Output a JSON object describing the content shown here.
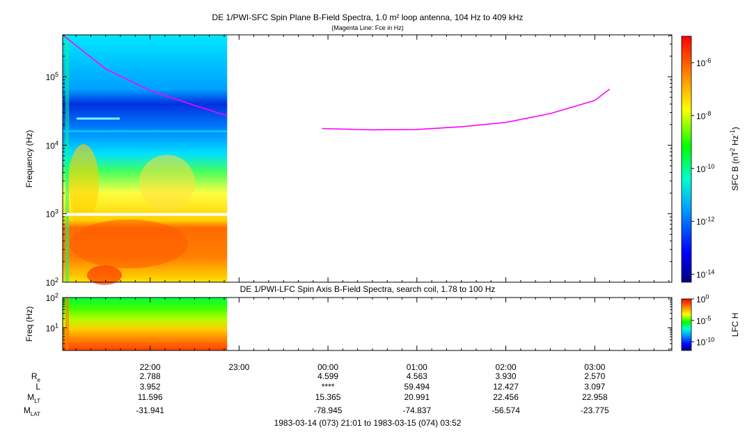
{
  "chart_data": [
    {
      "type": "heatmap",
      "title": "DE 1/PWI-SFC  Spin Plane B-Field Spectra, 1.0 m² loop antenna, 104 Hz to 409 kHz",
      "subtitle": "(Magenta Line: Fce in Hz)",
      "ylabel": "Frequency (Hz)",
      "yscale": "log",
      "ylim": [
        100,
        409000
      ],
      "y_ticks": [
        {
          "value": 100,
          "base": "10",
          "exp": "2"
        },
        {
          "value": 1000,
          "base": "10",
          "exp": "3"
        },
        {
          "value": 10000,
          "base": "10",
          "exp": "4"
        },
        {
          "value": 100000,
          "base": "10",
          "exp": "5"
        }
      ],
      "data_coverage_utc": [
        "21:01",
        "22:52"
      ],
      "fce_line_color": "#ff00ff",
      "fce_line": [
        {
          "t": "21:01",
          "f": 480000
        },
        {
          "t": "21:30",
          "f": 130000
        },
        {
          "t": "22:00",
          "f": 63000
        },
        {
          "t": "22:30",
          "f": 38000
        },
        {
          "t": "22:52",
          "f": 27000
        },
        {
          "t": "23:56",
          "f": 17500
        },
        {
          "t": "00:30",
          "f": 16800
        },
        {
          "t": "01:00",
          "f": 17000
        },
        {
          "t": "01:30",
          "f": 18600
        },
        {
          "t": "02:00",
          "f": 21500
        },
        {
          "t": "02:30",
          "f": 29000
        },
        {
          "t": "03:00",
          "f": 45000
        },
        {
          "t": "03:10",
          "f": 66000
        }
      ],
      "colorbar": {
        "label_base": "SFC B (nT",
        "label_sup1": "2",
        "label_mid": " Hz",
        "label_sup2": "-1",
        "label_end": ")",
        "scale": "log",
        "range": [
          5e-15,
          1e-05
        ],
        "ticks": [
          {
            "value": 1e-06,
            "base": "10",
            "exp": "-6"
          },
          {
            "value": 1e-08,
            "base": "10",
            "exp": "-8"
          },
          {
            "value": 1e-10,
            "base": "10",
            "exp": "-10"
          },
          {
            "value": 1e-12,
            "base": "10",
            "exp": "-12"
          },
          {
            "value": 1e-14,
            "base": "10",
            "exp": "-14"
          }
        ]
      }
    },
    {
      "type": "heatmap",
      "title": "DE 1/PWI-LFC  Spin Axis B-Field Spectra, search coil, 1.78 to 100 Hz",
      "ylabel": "Freq (Hz)",
      "yscale": "log",
      "ylim": [
        1.78,
        100
      ],
      "y_ticks": [
        {
          "value": 10,
          "base": "10",
          "exp": "1"
        },
        {
          "value": 100,
          "base": "10",
          "exp": "2"
        }
      ],
      "data_coverage_utc": [
        "21:01",
        "22:52"
      ],
      "colorbar": {
        "label": "LFC H",
        "scale": "log",
        "range": [
          1e-12,
          1
        ],
        "ticks": [
          {
            "value": 1,
            "base": "10",
            "exp": "0"
          },
          {
            "value": 1e-05,
            "base": "10",
            "exp": "-5"
          },
          {
            "value": 1e-10,
            "base": "10",
            "exp": "-10"
          }
        ]
      }
    }
  ],
  "time_axis": {
    "range_utc": [
      "21:01",
      "03:52"
    ],
    "ticks": [
      "22:00",
      "23:00",
      "00:00",
      "01:00",
      "02:00",
      "03:00"
    ]
  },
  "ephemeris": {
    "rows": [
      {
        "label": "R",
        "sub": "e",
        "values": [
          "2.788",
          "",
          "4.599",
          "4.563",
          "3.930",
          "2.570"
        ]
      },
      {
        "label": "L",
        "sub": "",
        "values": [
          "3.952",
          "",
          "****",
          "59.494",
          "12.427",
          "3.097"
        ]
      },
      {
        "label": "M",
        "sub": "LT",
        "values": [
          "11.596",
          "",
          "15.365",
          "20.991",
          "22.456",
          "22.958"
        ]
      },
      {
        "label": "M",
        "sub": "LAT",
        "values": [
          "-31.941",
          "",
          "-78.945",
          "-74.837",
          "-56.574",
          "-23.775"
        ]
      }
    ]
  },
  "footer": "1983-03-14 (073) 21:01 to 1983-03-15 (074) 03:52"
}
